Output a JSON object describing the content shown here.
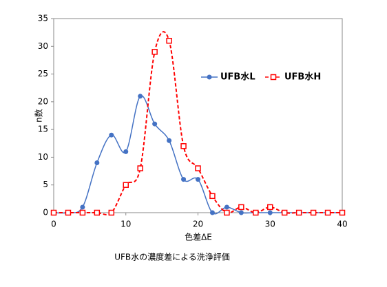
{
  "chart_data": {
    "type": "line",
    "title": "UFB水の濃度差による洗浄評価",
    "x_label": "色差ΔE",
    "y_label": "n数",
    "x": [
      0,
      2,
      4,
      6,
      8,
      10,
      12,
      14,
      16,
      18,
      20,
      22,
      24,
      26,
      28,
      30,
      32,
      34,
      36,
      38,
      40
    ],
    "series": [
      {
        "name": "UFB水L",
        "color": "#4472c4",
        "marker": "circle",
        "dash": false,
        "values": [
          0,
          0,
          1,
          9,
          14,
          11,
          21,
          16,
          13,
          6,
          6,
          0,
          1,
          0,
          0,
          0,
          0,
          0,
          0,
          0,
          0
        ]
      },
      {
        "name": "UFB水H",
        "color": "#ff0000",
        "marker": "square",
        "dash": true,
        "values": [
          0,
          0,
          0,
          0,
          0,
          5,
          8,
          29,
          31,
          12,
          8,
          3,
          0,
          1,
          0,
          1,
          0,
          0,
          0,
          0,
          0
        ]
      }
    ],
    "xlim": [
      0,
      40
    ],
    "xticks": [
      0,
      10,
      20,
      30,
      40
    ],
    "ylim": [
      0,
      35
    ],
    "yticks": [
      0,
      5,
      10,
      15,
      20,
      25,
      30,
      35
    ],
    "grid": false
  }
}
